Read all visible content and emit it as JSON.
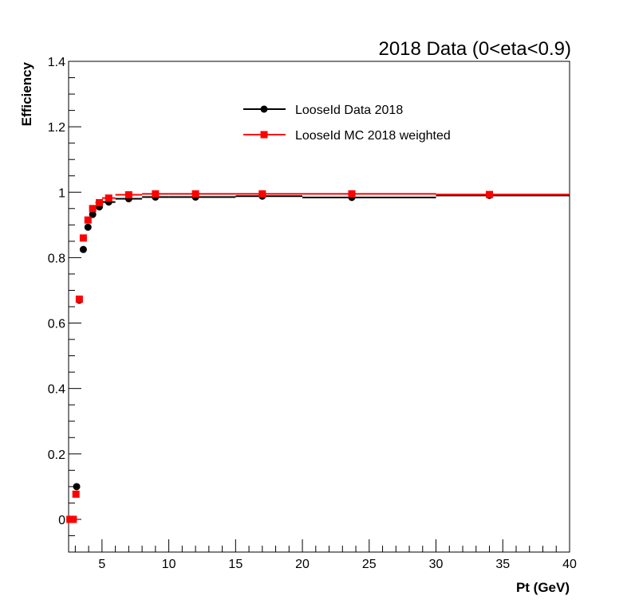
{
  "chart_data": {
    "type": "scatter",
    "title": "2018 Data (0<eta<0.9)",
    "xlabel": "Pt (GeV)",
    "ylabel": "Efficiency",
    "xlim": [
      2.5,
      40
    ],
    "ylim": [
      -0.1,
      1.4
    ],
    "x_ticks": [
      5,
      10,
      15,
      20,
      25,
      30,
      35,
      40
    ],
    "y_ticks": [
      0,
      0.2,
      0.4,
      0.6,
      0.8,
      1,
      1.2,
      1.4
    ],
    "x_tick_labels": [
      "5",
      "10",
      "15",
      "20",
      "25",
      "30",
      "35",
      "40"
    ],
    "y_tick_labels": [
      "0",
      "0.2",
      "0.4",
      "0.6",
      "0.8",
      "1",
      "1.2",
      "1.4"
    ],
    "grid": false,
    "legend_position": "top-center",
    "series": [
      {
        "name": "LooseId Data 2018",
        "color": "#000000",
        "marker": "circle",
        "points": [
          {
            "x": 2.6,
            "y": 0.0,
            "xlo": 2.5,
            "xhi": 2.75
          },
          {
            "x": 2.85,
            "y": 0.0,
            "xlo": 2.75,
            "xhi": 3.0
          },
          {
            "x": 3.1,
            "y": 0.1,
            "xlo": 3.0,
            "xhi": 3.2
          },
          {
            "x": 3.3,
            "y": 0.67,
            "xlo": 3.2,
            "xhi": 3.4
          },
          {
            "x": 3.6,
            "y": 0.825,
            "xlo": 3.4,
            "xhi": 3.8
          },
          {
            "x": 3.95,
            "y": 0.893,
            "xlo": 3.8,
            "xhi": 4.1
          },
          {
            "x": 4.3,
            "y": 0.932,
            "xlo": 4.1,
            "xhi": 4.5
          },
          {
            "x": 4.8,
            "y": 0.955,
            "xlo": 4.5,
            "xhi": 5.0
          },
          {
            "x": 5.5,
            "y": 0.97,
            "xlo": 5.0,
            "xhi": 6.0
          },
          {
            "x": 7.0,
            "y": 0.98,
            "xlo": 6.0,
            "xhi": 8.0
          },
          {
            "x": 9.0,
            "y": 0.985,
            "xlo": 8.0,
            "xhi": 10.0
          },
          {
            "x": 12.0,
            "y": 0.985,
            "xlo": 10.0,
            "xhi": 15.0
          },
          {
            "x": 17.0,
            "y": 0.988,
            "xlo": 15.0,
            "xhi": 20.0
          },
          {
            "x": 23.7,
            "y": 0.984,
            "xlo": 20.0,
            "xhi": 30.0
          },
          {
            "x": 34.0,
            "y": 0.99,
            "xlo": 30.0,
            "xhi": 40.0
          }
        ]
      },
      {
        "name": "LooseId MC 2018 weighted",
        "color": "#ff0000",
        "marker": "square",
        "points": [
          {
            "x": 2.6,
            "y": 0.0,
            "xlo": 2.5,
            "xhi": 2.75
          },
          {
            "x": 2.85,
            "y": 0.0,
            "xlo": 2.75,
            "xhi": 3.0
          },
          {
            "x": 3.05,
            "y": 0.077,
            "xlo": 3.0,
            "xhi": 3.2
          },
          {
            "x": 3.3,
            "y": 0.673,
            "xlo": 3.2,
            "xhi": 3.4
          },
          {
            "x": 3.6,
            "y": 0.86,
            "xlo": 3.4,
            "xhi": 3.8
          },
          {
            "x": 3.95,
            "y": 0.915,
            "xlo": 3.8,
            "xhi": 4.1
          },
          {
            "x": 4.3,
            "y": 0.95,
            "xlo": 4.1,
            "xhi": 4.5
          },
          {
            "x": 4.8,
            "y": 0.968,
            "xlo": 4.5,
            "xhi": 5.0
          },
          {
            "x": 5.5,
            "y": 0.982,
            "xlo": 5.0,
            "xhi": 6.0
          },
          {
            "x": 7.0,
            "y": 0.992,
            "xlo": 6.0,
            "xhi": 8.0
          },
          {
            "x": 9.0,
            "y": 0.995,
            "xlo": 8.0,
            "xhi": 10.0
          },
          {
            "x": 12.0,
            "y": 0.995,
            "xlo": 10.0,
            "xhi": 15.0
          },
          {
            "x": 17.0,
            "y": 0.995,
            "xlo": 15.0,
            "xhi": 20.0
          },
          {
            "x": 23.7,
            "y": 0.995,
            "xlo": 20.0,
            "xhi": 30.0
          },
          {
            "x": 34.0,
            "y": 0.993,
            "xlo": 30.0,
            "xhi": 40.0
          }
        ]
      }
    ]
  }
}
